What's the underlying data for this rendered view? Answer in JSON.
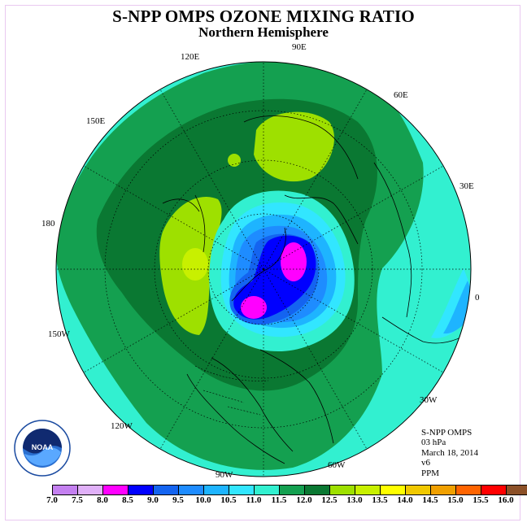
{
  "title": "S-NPP OMPS OZONE MIXING RATIO",
  "subtitle": "Northern Hemisphere",
  "longitude_labels": [
    "90E",
    "120E",
    "60E",
    "150E",
    "30E",
    "180",
    "0",
    "150W",
    "30W",
    "120W",
    "60W",
    "90W"
  ],
  "info": {
    "instrument": "S-NPP OMPS",
    "level": "03 hPa",
    "date": "March 18, 2014",
    "version": "v6",
    "units": "PPM"
  },
  "colorbar": {
    "ticks": [
      "7.0",
      "7.5",
      "8.0",
      "8.5",
      "9.0",
      "9.5",
      "10.0",
      "10.5",
      "11.0",
      "11.5",
      "12.0",
      "12.5",
      "13.0",
      "13.5",
      "14.0",
      "14.5",
      "15.0",
      "15.5",
      "16.0"
    ],
    "colors": [
      "#c480f0",
      "#e0b0f8",
      "#ff00ff",
      "#0000ff",
      "#1464f0",
      "#1e8cff",
      "#1eb4ff",
      "#32e6ff",
      "#32f0d0",
      "#14a050",
      "#0a7832",
      "#9ee000",
      "#c8f000",
      "#ffff00",
      "#f0c800",
      "#f0a000",
      "#ff6400",
      "#ff0000",
      "#8c5028"
    ]
  },
  "logo_text": "NOAA"
}
